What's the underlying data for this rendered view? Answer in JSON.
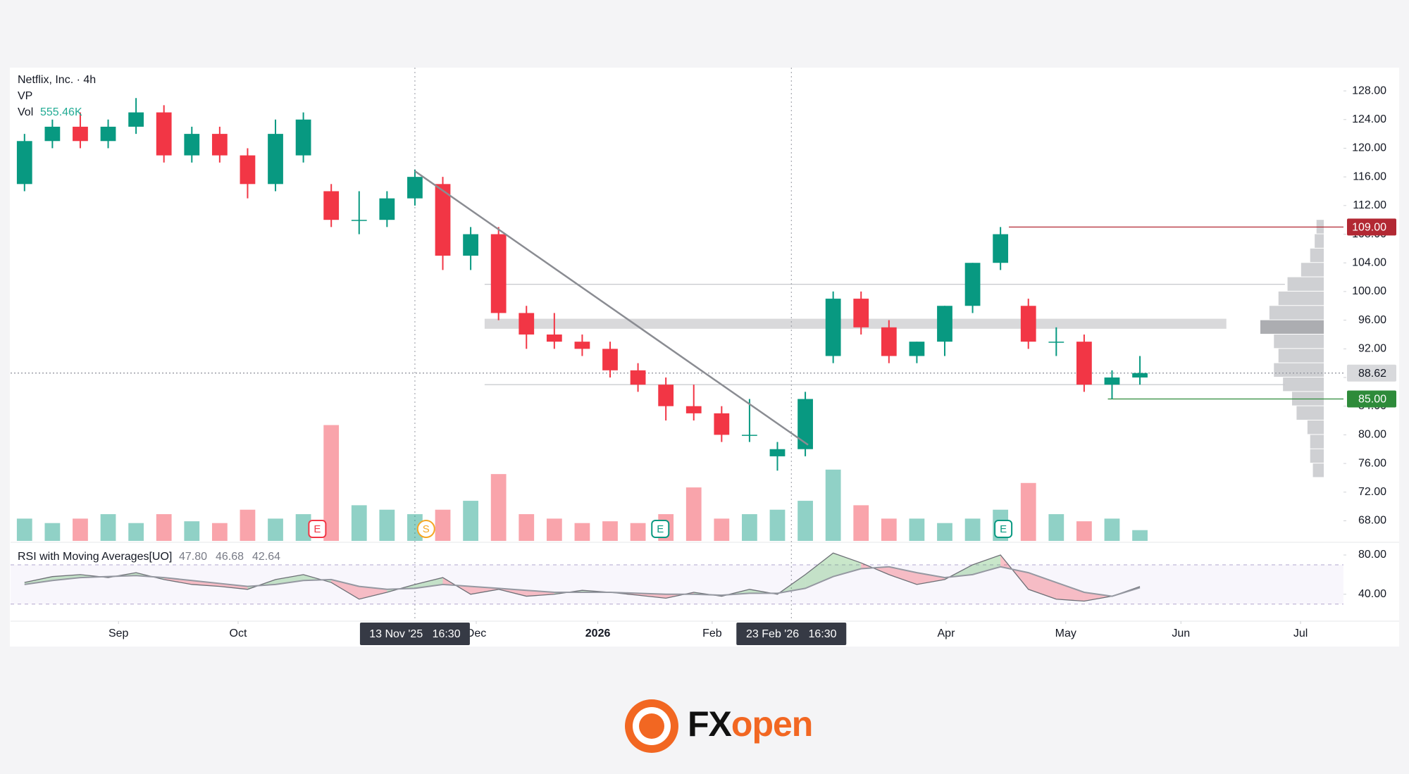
{
  "chart_data": {
    "type": "candlestick",
    "title": "Netflix, Inc. · 4h",
    "indicator_label": "VP",
    "volume_label": "Vol",
    "volume_last_label": "555.46K",
    "categories": [
      null,
      null,
      null,
      null,
      null,
      null,
      null,
      null,
      null,
      null,
      null,
      null,
      null,
      null,
      null,
      null,
      null,
      null,
      null,
      null,
      null,
      null,
      null,
      null,
      null,
      null,
      null,
      null,
      null,
      null,
      null,
      null,
      null,
      null,
      null,
      null,
      null,
      null,
      null,
      null,
      null
    ],
    "open": [
      115,
      121,
      123,
      121,
      123,
      125,
      119,
      122,
      119,
      115,
      119,
      114,
      110,
      110,
      113,
      115,
      105,
      108,
      97,
      94,
      93,
      92,
      89,
      87,
      84,
      83,
      80,
      77,
      78,
      91,
      99,
      95,
      91,
      93,
      98,
      104,
      98,
      93,
      93,
      87,
      88
    ],
    "high": [
      122,
      124,
      125,
      124,
      127,
      126,
      123,
      123,
      120,
      124,
      125,
      115,
      114,
      114,
      117,
      116,
      109,
      109,
      98,
      97,
      94,
      93,
      90,
      88,
      87,
      84,
      85,
      79,
      86,
      100,
      100,
      96,
      93,
      98,
      104,
      109,
      99,
      95,
      94,
      89,
      91
    ],
    "low": [
      114,
      120,
      120,
      120,
      122,
      118,
      118,
      118,
      113,
      114,
      118,
      109,
      108,
      109,
      112,
      103,
      103,
      96,
      92,
      92,
      91,
      88,
      86,
      82,
      82,
      79,
      79,
      75,
      77,
      90,
      94,
      90,
      90,
      91,
      97,
      103,
      92,
      91,
      86,
      85,
      87
    ],
    "close": [
      121,
      123,
      121,
      123,
      125,
      119,
      122,
      119,
      115,
      122,
      124,
      110,
      110,
      113,
      116,
      105,
      108,
      97,
      94,
      93,
      92,
      89,
      87,
      84,
      83,
      80,
      80,
      78,
      85,
      99,
      95,
      91,
      93,
      98,
      104,
      108,
      93,
      93,
      87,
      88,
      88.62
    ],
    "up_color": "#089981",
    "down_color": "#f23645",
    "xlim": [
      -0.5,
      47.3
    ],
    "xticks": [
      {
        "value": 3.37,
        "label": "Sep"
      },
      {
        "value": 7.66,
        "label": "Oct"
      },
      {
        "value": 16.2,
        "label": "Dec"
      },
      {
        "value": 20.56,
        "label": "2026"
      },
      {
        "value": 24.66,
        "label": "Feb"
      },
      {
        "value": 33.05,
        "label": "Apr"
      },
      {
        "value": 37.34,
        "label": "May"
      },
      {
        "value": 41.47,
        "label": "Jun"
      },
      {
        "value": 45.76,
        "label": "Jul"
      }
    ],
    "ylim": [
      65,
      131.25
    ],
    "yticks": [
      {
        "value": 68,
        "label": "68.00"
      },
      {
        "value": 72,
        "label": "72.00"
      },
      {
        "value": 76,
        "label": "76.00"
      },
      {
        "value": 80,
        "label": "80.00"
      },
      {
        "value": 84,
        "label": "84.00"
      },
      {
        "value": 88,
        "label": "88.00"
      },
      {
        "value": 92,
        "label": "92.00"
      },
      {
        "value": 96,
        "label": "96.00"
      },
      {
        "value": 100,
        "label": "100.00"
      },
      {
        "value": 104,
        "label": "104.00"
      },
      {
        "value": 108,
        "label": "108.00"
      },
      {
        "value": 112,
        "label": "112.00"
      },
      {
        "value": 116,
        "label": "116.00"
      },
      {
        "value": 120,
        "label": "120.00"
      },
      {
        "value": 124,
        "label": "124.00"
      },
      {
        "value": 128,
        "label": "128.00"
      }
    ],
    "volume": {
      "values": [
        1150,
        920,
        1150,
        1380,
        920,
        1380,
        1012,
        920,
        1610,
        1150,
        1380,
        5980,
        1840,
        1610,
        1380,
        1610,
        2070,
        3450,
        1380,
        1150,
        920,
        1012,
        920,
        1380,
        2760,
        1150,
        1380,
        1610,
        2070,
        3680,
        1840,
        1150,
        1150,
        920,
        1150,
        1610,
        2990,
        1380,
        1012,
        1150,
        555.46
      ],
      "ylim": [
        0,
        8000
      ]
    },
    "price_labels": [
      {
        "value": 109,
        "label": "109.00",
        "color": "#b22833",
        "text_color": "#ffffff",
        "from": 35.3
      },
      {
        "value": 88.62,
        "label": "88.62",
        "color": "#d8d9dc",
        "text_color": "#131722",
        "from": -0.5
      },
      {
        "value": 85,
        "label": "85.00",
        "color": "#2e8b3a",
        "text_color": "#ffffff",
        "from": 38.85
      }
    ],
    "levels": [
      {
        "value": 101,
        "x": [
          16.5,
          45.2
        ]
      },
      {
        "value": 87,
        "x": [
          16.5,
          45.2
        ]
      }
    ],
    "zone": {
      "range": [
        94.8,
        96.2
      ],
      "x": [
        16.5,
        43.1
      ]
    },
    "trendline": {
      "x": [
        14.0,
        28.1
      ],
      "y": [
        116.8,
        78.6
      ]
    },
    "crosshairs": [
      {
        "value": 14.0,
        "label": "13 Nov '25   16:30"
      },
      {
        "value": 27.5,
        "label": "23 Feb '26   16:30"
      }
    ],
    "events": [
      {
        "x": 10.5,
        "label": "E",
        "color": "#f23645"
      },
      {
        "x": 14.4,
        "label": "S",
        "color": "#f5a623"
      },
      {
        "x": 22.8,
        "label": "E",
        "color": "#089981"
      },
      {
        "x": 35.1,
        "label": "E",
        "color": "#089981"
      }
    ],
    "volume_profile": {
      "bins": [
        74,
        76,
        78,
        80,
        82,
        84,
        86,
        88,
        90,
        92,
        94,
        96,
        98,
        100,
        102,
        104,
        106,
        108,
        110
      ],
      "values": [
        12,
        15,
        15,
        18,
        30,
        35,
        45,
        55,
        50,
        55,
        70,
        60,
        50,
        40,
        25,
        15,
        10,
        8
      ]
    },
    "rsi": {
      "title": "RSI with Moving Averages[UO]",
      "header_values": [
        "47.80",
        "46.68",
        "42.64"
      ],
      "ylim": [
        14,
        91.5
      ],
      "yticks": [
        {
          "value": 40,
          "label": "40.00"
        },
        {
          "value": 80,
          "label": "80.00"
        }
      ],
      "bands": [
        30,
        70
      ],
      "series": [
        {
          "color": "#6d6f76",
          "values": [
            52,
            58,
            60,
            57,
            62,
            55,
            50,
            48,
            45,
            55,
            60,
            52,
            35,
            42,
            50,
            57,
            40,
            45,
            38,
            40,
            44,
            42,
            39,
            36,
            42,
            38,
            45,
            40,
            60,
            82,
            72,
            60,
            50,
            55,
            70,
            80,
            45,
            35,
            33,
            38,
            47.8
          ]
        },
        {
          "color": "#9598a1",
          "values": [
            50,
            54,
            57,
            58,
            59,
            57,
            54,
            51,
            48,
            50,
            54,
            55,
            48,
            45,
            46,
            50,
            48,
            46,
            44,
            42,
            42,
            42,
            41,
            40,
            40,
            39,
            41,
            41,
            46,
            58,
            66,
            68,
            62,
            57,
            60,
            68,
            62,
            52,
            42,
            38,
            46.68
          ]
        }
      ]
    }
  },
  "logo": {
    "left": "FX",
    "right": "open"
  }
}
